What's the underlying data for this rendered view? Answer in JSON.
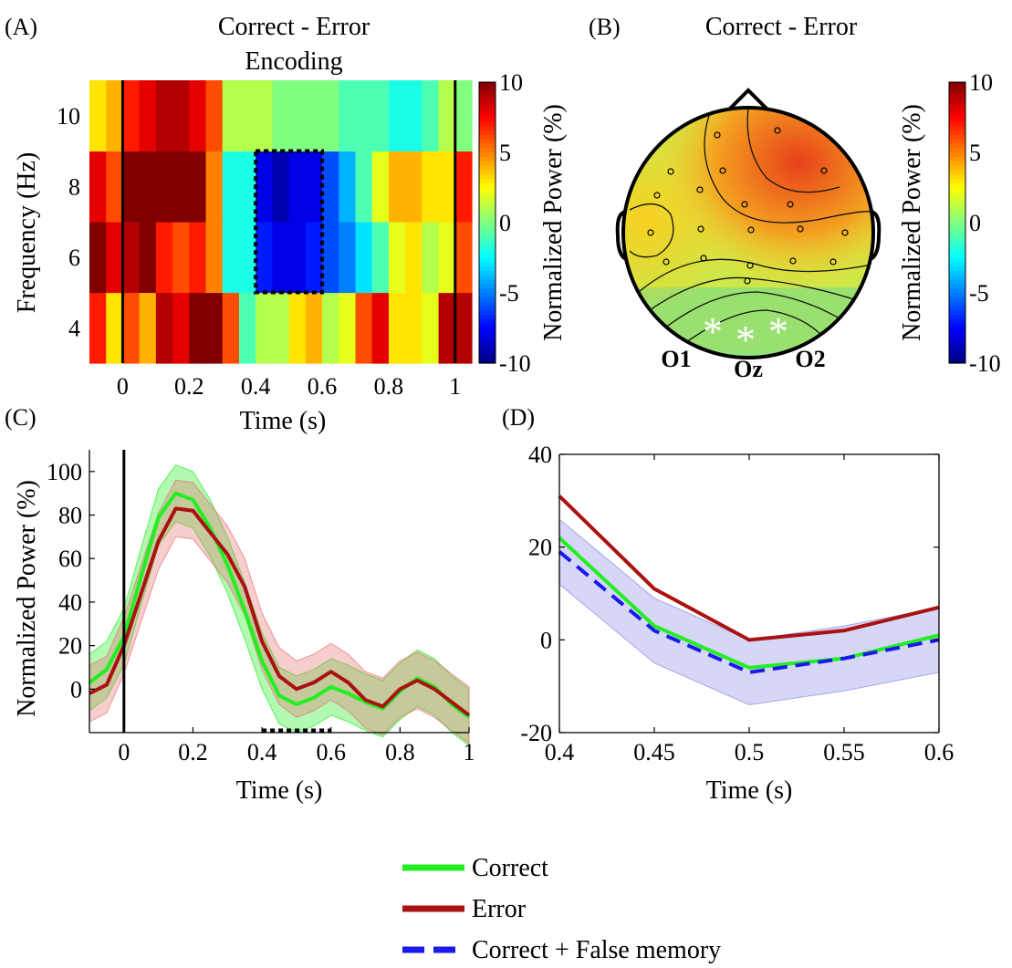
{
  "panels": {
    "a": {
      "label": "(A)",
      "title": "Correct - Error",
      "subtitle": "Encoding"
    },
    "b": {
      "label": "(B)",
      "title": "Correct - Error"
    },
    "c": {
      "label": "(C)"
    },
    "d": {
      "label": "(D)"
    }
  },
  "legend": {
    "items": [
      {
        "name": "Correct",
        "color": "#22ee22",
        "style": "solid"
      },
      {
        "name": "Error",
        "color": "#aa1111",
        "style": "solid"
      },
      {
        "name": "Correct + False memory",
        "color": "#1a1aee",
        "style": "dashed"
      }
    ]
  },
  "chart_data": [
    {
      "id": "A",
      "type": "heatmap",
      "title": "Correct - Error",
      "subtitle": "Encoding",
      "xlabel": "Time (s)",
      "ylabel": "Frequency (Hz)",
      "x_ticks": [
        "0",
        "0.2",
        "0.4",
        "0.6",
        "0.8",
        "1"
      ],
      "x_tick_values": [
        0,
        0.2,
        0.4,
        0.6,
        0.8,
        1
      ],
      "y_ticks": [
        "4",
        "6",
        "8",
        "10"
      ],
      "y_tick_values": [
        4,
        6,
        8,
        10
      ],
      "xlim": [
        -0.1,
        1.05
      ],
      "ylim": [
        3,
        11
      ],
      "x_edges": [
        -0.1,
        -0.05,
        0.0,
        0.05,
        0.1,
        0.15,
        0.2,
        0.25,
        0.3,
        0.35,
        0.4,
        0.45,
        0.5,
        0.55,
        0.6,
        0.65,
        0.7,
        0.75,
        0.8,
        0.85,
        0.9,
        0.95,
        1.0,
        1.05
      ],
      "y_edges": [
        3,
        5,
        7,
        9,
        11
      ],
      "values": [
        [
          7,
          3,
          6,
          4,
          9,
          8,
          10,
          10,
          6,
          -1,
          1,
          1,
          3,
          4,
          1,
          2,
          6,
          8,
          3,
          3,
          2,
          9,
          9
        ],
        [
          10,
          8,
          9,
          10,
          7,
          6,
          7,
          5,
          -2,
          -2,
          -7,
          -8,
          -8,
          -7,
          -6,
          -5,
          -3,
          -1,
          2,
          3,
          1,
          2,
          6
        ],
        [
          8,
          6,
          10,
          10,
          10,
          10,
          10,
          5,
          -2,
          -2,
          -8,
          -9,
          -8,
          -8,
          -6,
          -4,
          -1,
          2,
          4,
          4,
          3,
          3,
          7
        ],
        [
          3,
          4,
          7,
          8,
          9,
          9,
          8,
          6,
          1,
          1,
          1,
          0,
          0,
          0,
          0,
          -1,
          -1,
          -1,
          -2,
          -2,
          -1,
          1,
          0
        ]
      ],
      "vlines": [
        0,
        1
      ],
      "roi": {
        "x": [
          0.4,
          0.6
        ],
        "y": [
          5,
          9
        ]
      },
      "colorbar": {
        "label": "Normalized Power (%)",
        "min": -10,
        "max": 10,
        "ticks": [
          "10",
          "5",
          "0",
          "-5",
          "-10"
        ]
      }
    },
    {
      "id": "B",
      "type": "heatmap",
      "title": "Correct - Error",
      "description_type": "scalp topography",
      "electrode_labels": [
        "O1",
        "Oz",
        "O2"
      ],
      "significant_markers": 3,
      "colorbar": {
        "label": "Normalized Power (%)",
        "min": -10,
        "max": 10,
        "ticks": [
          "10",
          "5",
          "0",
          "-5",
          "-10"
        ]
      }
    },
    {
      "id": "C",
      "type": "line",
      "xlabel": "Time (s)",
      "ylabel": "Normalized Power (%)",
      "x_ticks": [
        "0",
        "0.2",
        "0.4",
        "0.6",
        "0.8",
        "1"
      ],
      "y_ticks": [
        "0",
        "20",
        "40",
        "60",
        "80",
        "100"
      ],
      "xlim": [
        -0.1,
        1.0
      ],
      "ylim": [
        -20,
        110
      ],
      "x": [
        -0.1,
        -0.05,
        0.0,
        0.05,
        0.1,
        0.15,
        0.2,
        0.25,
        0.3,
        0.35,
        0.4,
        0.45,
        0.5,
        0.55,
        0.6,
        0.65,
        0.7,
        0.75,
        0.8,
        0.85,
        0.9,
        0.95,
        1.0
      ],
      "series": [
        {
          "name": "Correct",
          "color": "#22ee22",
          "band_color": "#22ee22",
          "values": [
            3,
            9,
            24,
            52,
            79,
            90,
            87,
            74,
            57,
            36,
            13,
            -3,
            -7,
            -4,
            1,
            -2,
            -6,
            -9,
            -1,
            5,
            1,
            -7,
            -13
          ],
          "band": 13
        },
        {
          "name": "Error",
          "color": "#aa1111",
          "band_color": "#e87070",
          "values": [
            -2,
            2,
            20,
            44,
            68,
            83,
            82,
            72,
            62,
            47,
            22,
            6,
            0,
            3,
            8,
            3,
            -5,
            -8,
            0,
            4,
            0,
            -6,
            -12
          ],
          "band": 13
        }
      ],
      "vlines": [
        0
      ],
      "significance_bar": [
        0.4,
        0.6
      ]
    },
    {
      "id": "D",
      "type": "line",
      "xlabel": "Time (s)",
      "x_ticks": [
        "0.4",
        "0.45",
        "0.5",
        "0.55",
        "0.6"
      ],
      "y_ticks": [
        "-20",
        "0",
        "20",
        "40"
      ],
      "xlim": [
        0.4,
        0.6
      ],
      "ylim": [
        -20,
        40
      ],
      "x": [
        0.4,
        0.45,
        0.5,
        0.55,
        0.6
      ],
      "series": [
        {
          "name": "Correct",
          "color": "#22ee22",
          "values": [
            22,
            3,
            -6,
            -4,
            1
          ]
        },
        {
          "name": "Error",
          "color": "#aa1111",
          "values": [
            31,
            11,
            0,
            2,
            7
          ]
        },
        {
          "name": "Correct + False memory",
          "color": "#1a1aee",
          "dashed": true,
          "values": [
            19,
            2,
            -7,
            -4,
            0
          ],
          "band": 7,
          "band_color": "#8a8ae8"
        }
      ]
    }
  ]
}
